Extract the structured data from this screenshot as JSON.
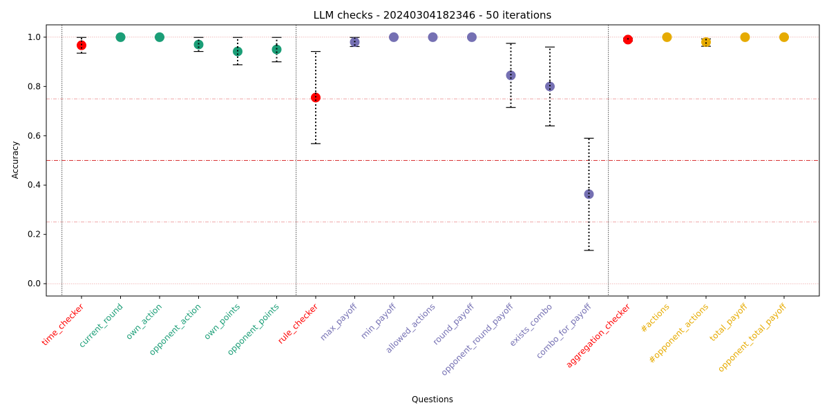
{
  "chart_data": {
    "type": "scatter",
    "title": "LLM checks - 20240304182346 - 50 iterations",
    "xlabel": "Questions",
    "ylabel": "Accuracy",
    "ylim": [
      -0.05,
      1.05
    ],
    "yticks": [
      "0.0",
      "0.2",
      "0.4",
      "0.6",
      "0.8",
      "1.0"
    ],
    "grid": false,
    "reference_lines": [
      0.0,
      0.25,
      0.5,
      0.75,
      1.0
    ],
    "group_separators_after": [
      "current_round_group_start",
      "rule_checker",
      "aggregation_checker"
    ],
    "colors": {
      "checker": "#ff0000",
      "time_group": "#1b9e77",
      "rule_group": "#7570b3",
      "aggregation_group": "#e6ab02",
      "errorbar": "#000000",
      "refline": "#d62728"
    },
    "categories": [
      "time_checker",
      "current_round",
      "own_action",
      "opponent_action",
      "own_points",
      "opponent_points",
      "rule_checker",
      "max_payoff",
      "min_payoff",
      "allowed_actions",
      "round_payoff",
      "opponent_round_payoff",
      "exists_combo",
      "combo_for_payoff",
      "aggregation_checker",
      "#actions",
      "#opponent_actions",
      "total_payoff",
      "opponent_total_payoff"
    ],
    "groups": [
      "checker",
      "time_group",
      "time_group",
      "time_group",
      "time_group",
      "time_group",
      "checker",
      "rule_group",
      "rule_group",
      "rule_group",
      "rule_group",
      "rule_group",
      "rule_group",
      "rule_group",
      "checker",
      "aggregation_group",
      "aggregation_group",
      "aggregation_group",
      "aggregation_group"
    ],
    "values": [
      0.967,
      1.0,
      1.0,
      0.97,
      0.942,
      0.95,
      0.755,
      0.98,
      1.0,
      1.0,
      1.0,
      0.845,
      0.8,
      0.363,
      0.99,
      1.0,
      0.98,
      1.0,
      1.0
    ],
    "err_low": [
      0.935,
      1.0,
      1.0,
      0.942,
      0.888,
      0.9,
      0.568,
      0.962,
      1.0,
      1.0,
      1.0,
      0.715,
      0.64,
      0.135,
      0.984,
      1.0,
      0.963,
      1.0,
      1.0
    ],
    "err_high": [
      0.999,
      1.0,
      1.0,
      0.999,
      0.999,
      0.999,
      0.942,
      0.999,
      1.0,
      1.0,
      1.0,
      0.975,
      0.96,
      0.59,
      0.996,
      1.0,
      0.993,
      1.0,
      1.0
    ]
  }
}
